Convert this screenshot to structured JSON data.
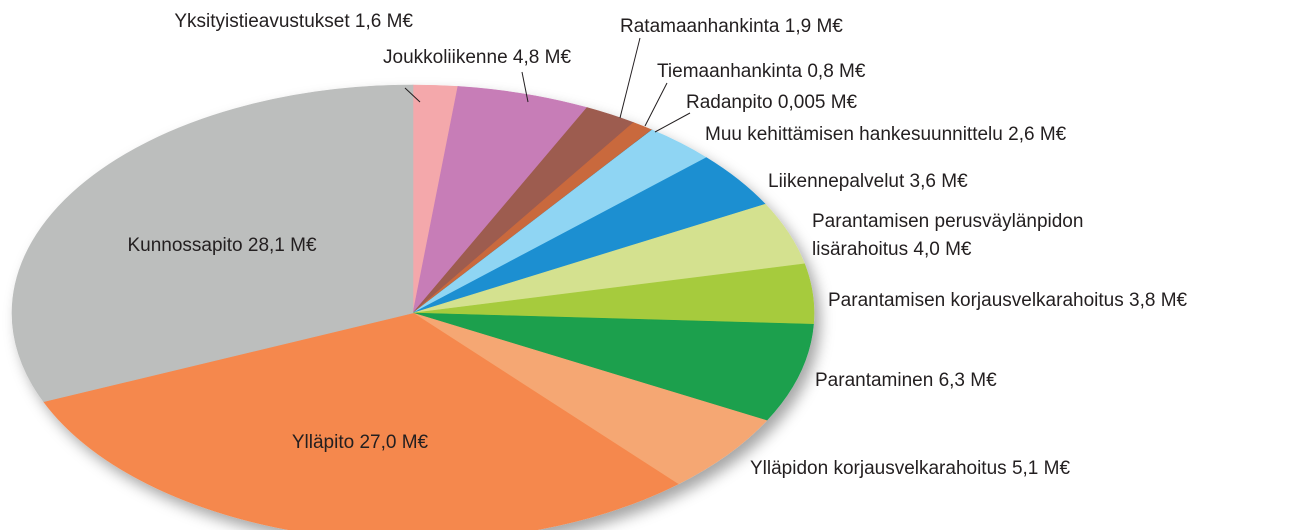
{
  "chart_data": {
    "type": "pie",
    "categories": [
      "Yksityistieavustukset",
      "Joukkoliikenne",
      "Ratamaanhankinta",
      "Tiemaanhankinta",
      "Radanpito",
      "Muu kehittämisen hankesuunnittelu",
      "Liikennepalvelut",
      "Parantamisen perusväylänpidon lisärahoitus",
      "Parantamisen korjausvelkarahoitus",
      "Parantaminen",
      "Ylläpidon korjausvelkarahoitus",
      "Ylläpito",
      "Kunnossapito"
    ],
    "values": [
      1.6,
      4.8,
      1.9,
      0.8,
      0.005,
      2.6,
      3.6,
      4.0,
      3.8,
      6.3,
      5.1,
      27.0,
      28.1
    ],
    "value_labels": [
      "1,6 M€",
      "4,8 M€",
      "1,9 M€",
      "0,8 M€",
      "0,005 M€",
      "2,6 M€",
      "3,6 M€",
      "4,0 M€",
      "3,8 M€",
      "6,3 M€",
      "5,1 M€",
      "27,0 M€",
      "28,1 M€"
    ],
    "colors": [
      "#f4a8ab",
      "#c77db7",
      "#9d5b4f",
      "#c9693e",
      "#3d3d3d",
      "#8fd5f3",
      "#1c8fd1",
      "#d4e18f",
      "#a6cb3e",
      "#1aa04d",
      "#f5a773",
      "#f5884d",
      "#bcbebd"
    ]
  }
}
